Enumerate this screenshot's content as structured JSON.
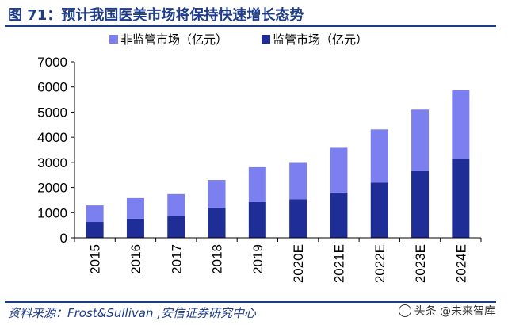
{
  "header": {
    "title": "图 71：预计我国医美市场将保持快速增长态势"
  },
  "footer": {
    "source": "资料来源：Frost&Sullivan ,安信证券研究中心",
    "watermark": "头条 @未来智库"
  },
  "colors": {
    "title": "#1f3c88",
    "regulated": "#1f2d96",
    "unregulated": "#7b7ff0",
    "axis": "#000000"
  },
  "chart_data": {
    "type": "bar",
    "stacked": true,
    "categories": [
      "2015",
      "2016",
      "2017",
      "2018",
      "2019",
      "2020E",
      "2021E",
      "2022E",
      "2023E",
      "2024E"
    ],
    "series": [
      {
        "name": "监管市场（亿元）",
        "color": "#1f2d96",
        "values": [
          630,
          760,
          870,
          1200,
          1420,
          1530,
          1800,
          2200,
          2650,
          3150
        ]
      },
      {
        "name": "非监管市场（亿元）",
        "color": "#7b7ff0",
        "values": [
          660,
          820,
          870,
          1100,
          1390,
          1450,
          1780,
          2110,
          2450,
          2720
        ]
      }
    ],
    "legend_order": [
      1,
      0
    ],
    "legend_position": "top",
    "ylim": [
      0,
      7000
    ],
    "yticks": [
      0,
      1000,
      2000,
      3000,
      4000,
      5000,
      6000,
      7000
    ],
    "grid": false,
    "xlabel": "",
    "ylabel": ""
  }
}
